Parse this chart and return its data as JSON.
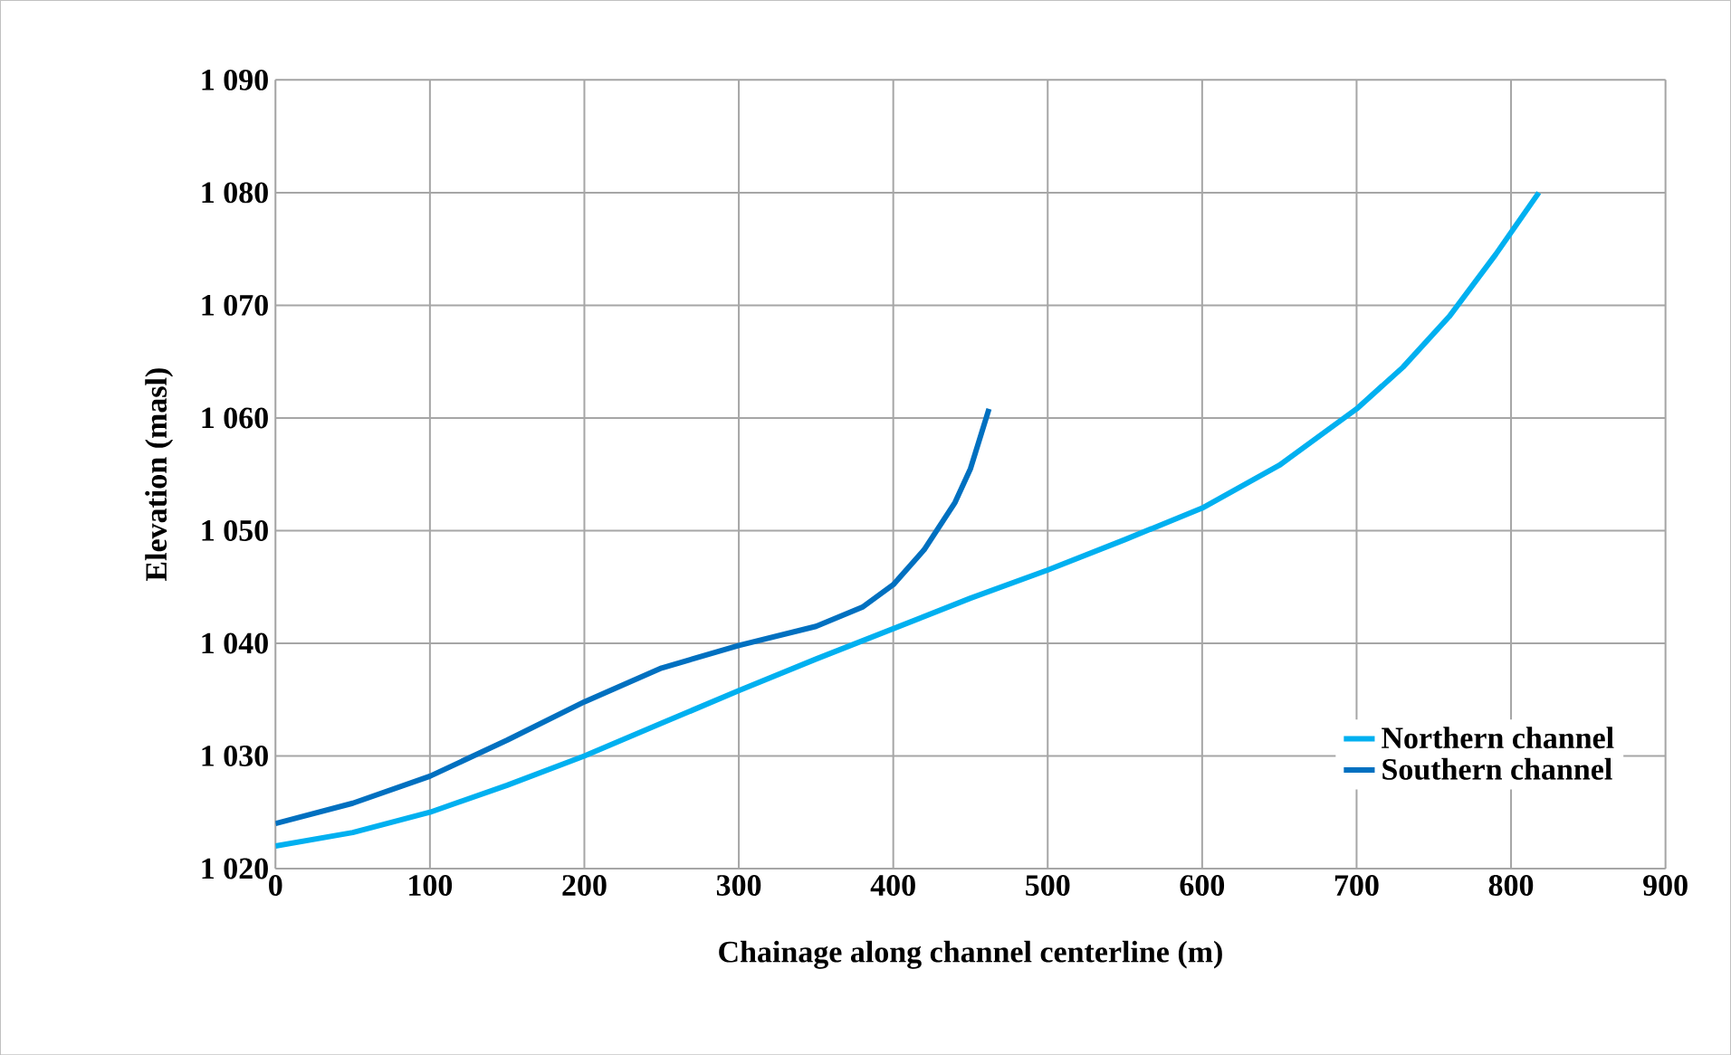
{
  "chart_data": {
    "type": "line",
    "xlabel": "Chainage along channel centerline (m)",
    "ylabel": "Elevation (masl)",
    "xlim": [
      0,
      900
    ],
    "xticks": [
      0,
      100,
      200,
      300,
      400,
      500,
      600,
      700,
      800,
      900
    ],
    "ylim": [
      1020,
      1090
    ],
    "yticks": [
      {
        "value": 1020,
        "label": "1 020"
      },
      {
        "value": 1030,
        "label": "1 030"
      },
      {
        "value": 1040,
        "label": "1 040"
      },
      {
        "value": 1050,
        "label": "1 050"
      },
      {
        "value": 1060,
        "label": "1 060"
      },
      {
        "value": 1070,
        "label": "1 070"
      },
      {
        "value": 1080,
        "label": "1 080"
      },
      {
        "value": 1090,
        "label": "1 090"
      }
    ],
    "grid": true,
    "legend": "bottom right",
    "marker": "none",
    "line_style": "solid",
    "series": [
      {
        "name": "Northern channel",
        "color": "#00b0f0",
        "x": [
          0,
          50,
          100,
          150,
          200,
          250,
          300,
          350,
          400,
          450,
          500,
          550,
          600,
          650,
          700,
          730,
          760,
          790,
          818
        ],
        "values": [
          1022,
          1023.2,
          1025,
          1027.4,
          1030,
          1032.9,
          1035.8,
          1038.6,
          1041.3,
          1044,
          1046.5,
          1049.2,
          1052,
          1055.8,
          1060.8,
          1064.5,
          1069,
          1074.5,
          1080
        ]
      },
      {
        "name": "Southern channel",
        "color": "#0070c0",
        "x": [
          0,
          50,
          100,
          150,
          200,
          250,
          300,
          350,
          380,
          400,
          420,
          440,
          450,
          462
        ],
        "values": [
          1024,
          1025.8,
          1028.2,
          1031.4,
          1034.8,
          1037.8,
          1039.8,
          1041.5,
          1043.2,
          1045.2,
          1048.3,
          1052.5,
          1055.5,
          1060.8
        ]
      }
    ]
  }
}
